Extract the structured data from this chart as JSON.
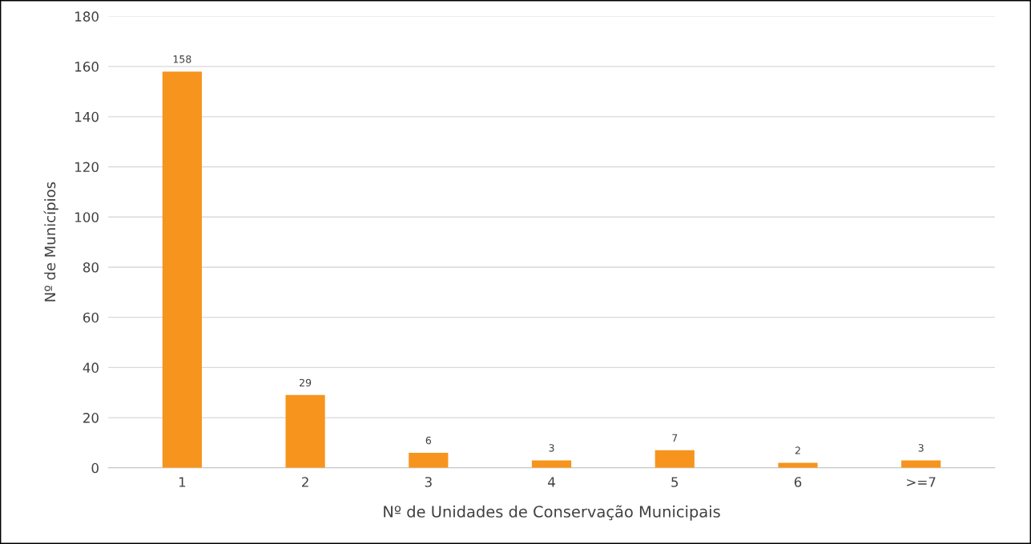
{
  "chart_data": {
    "type": "bar",
    "xlabel": "Nº de Unidades de Conservação Municipais",
    "ylabel": "Nº de Municípios",
    "categories": [
      "1",
      "2",
      "3",
      "4",
      "5",
      "6",
      ">=7"
    ],
    "values": [
      158,
      29,
      6,
      3,
      7,
      2,
      3
    ],
    "color": "#f7941d",
    "ylim": [
      0,
      180
    ],
    "yticks": [
      0,
      20,
      40,
      60,
      80,
      100,
      120,
      140,
      160,
      180
    ],
    "grid": "y",
    "data_labels": true
  }
}
